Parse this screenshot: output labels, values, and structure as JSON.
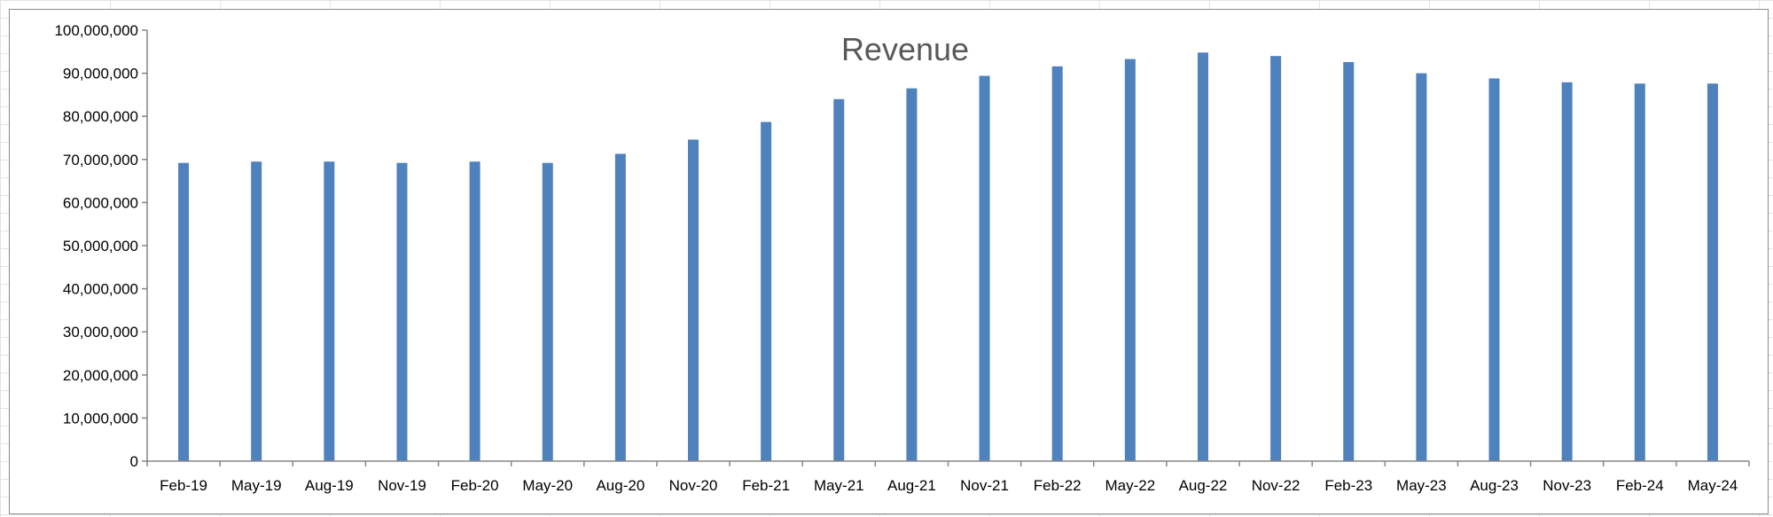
{
  "chart_data": {
    "type": "bar",
    "title": "Revenue",
    "xlabel": "",
    "ylabel": "",
    "ylim": [
      0,
      100000000
    ],
    "yticks": [
      "0",
      "10,000,000",
      "20,000,000",
      "30,000,000",
      "40,000,000",
      "50,000,000",
      "60,000,000",
      "70,000,000",
      "80,000,000",
      "90,000,000",
      "100,000,000"
    ],
    "categories": [
      "Feb-19",
      "May-19",
      "Aug-19",
      "Nov-19",
      "Feb-20",
      "May-20",
      "Aug-20",
      "Nov-20",
      "Feb-21",
      "May-21",
      "Aug-21",
      "Nov-21",
      "Feb-22",
      "May-22",
      "Aug-22",
      "Nov-22",
      "Feb-23",
      "May-23",
      "Aug-23",
      "Nov-23",
      "Feb-24",
      "May-24"
    ],
    "values": [
      69200000,
      69500000,
      69500000,
      69200000,
      69500000,
      69200000,
      71300000,
      74600000,
      78700000,
      84000000,
      86500000,
      89400000,
      91600000,
      93300000,
      94800000,
      94000000,
      92600000,
      90000000,
      88800000,
      87900000,
      87600000,
      87600000
    ],
    "color": "#4f81bd",
    "grid": false,
    "legend": "none"
  }
}
